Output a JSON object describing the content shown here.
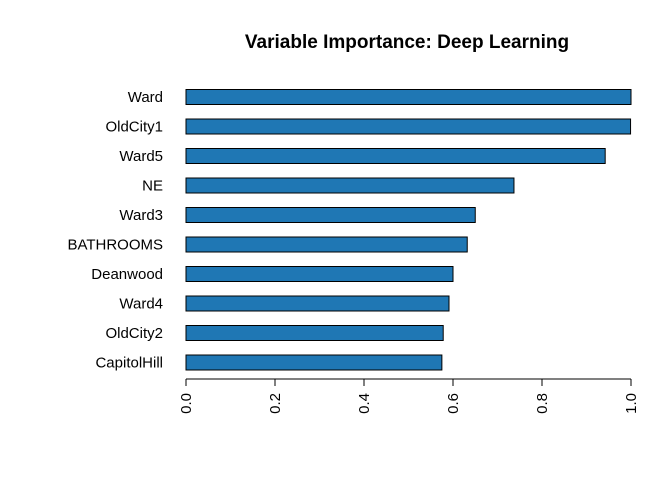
{
  "chart_data": {
    "type": "bar",
    "orientation": "horizontal",
    "title": "Variable Importance: Deep Learning",
    "xlabel": "",
    "ylabel": "",
    "xlim": [
      0,
      1
    ],
    "x_ticks": [
      "0.0",
      "0.2",
      "0.4",
      "0.6",
      "0.8",
      "1.0"
    ],
    "x_tick_values": [
      0,
      0.2,
      0.4,
      0.6,
      0.8,
      1.0
    ],
    "categories": [
      "Ward",
      "OldCity1",
      "Ward5",
      "NE",
      "Ward3",
      "BATHROOMS",
      "Deanwood",
      "Ward4",
      "OldCity2",
      "CapitolHill"
    ],
    "values": [
      1.0,
      0.999,
      0.942,
      0.737,
      0.65,
      0.632,
      0.6,
      0.591,
      0.578,
      0.575
    ],
    "bar_color": "#1f77b4",
    "bar_edge_color": "#000000",
    "grid": false,
    "legend": "none"
  }
}
